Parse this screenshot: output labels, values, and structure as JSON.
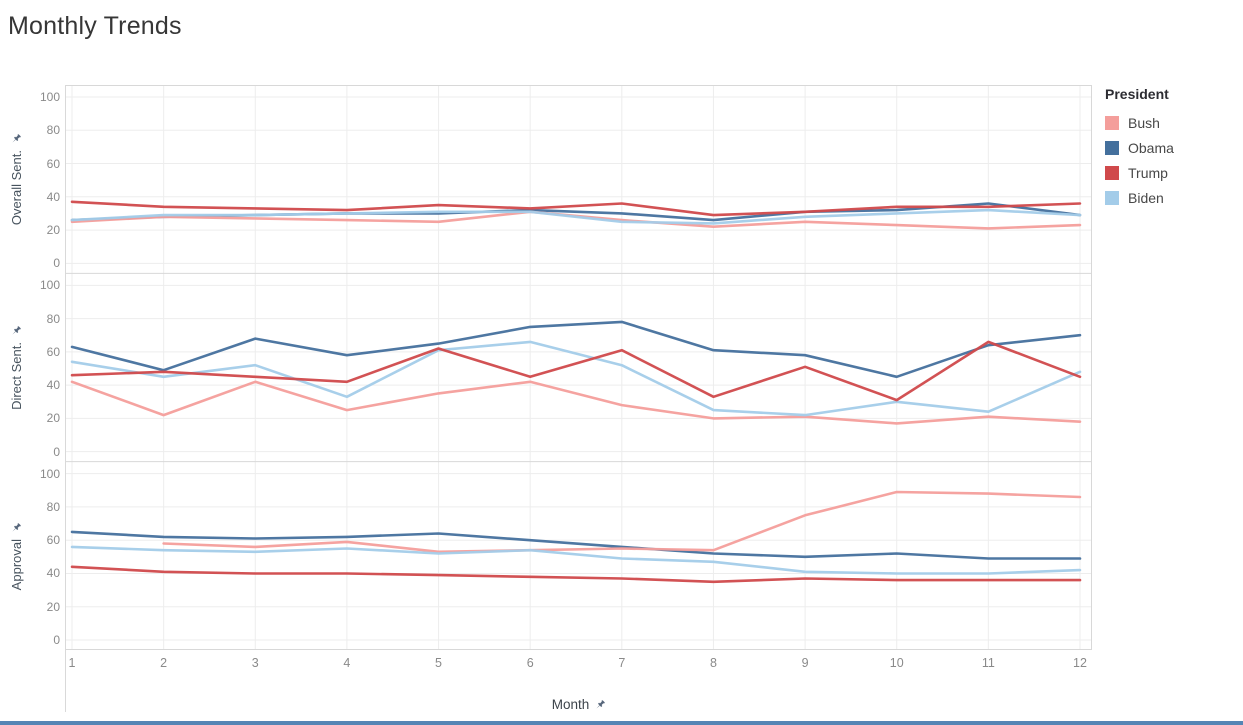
{
  "title": "Monthly Trends",
  "legend": {
    "title": "President",
    "items": [
      {
        "label": "Bush",
        "color": "#f49e9b"
      },
      {
        "label": "Obama",
        "color": "#44709d"
      },
      {
        "label": "Trump",
        "color": "#d0494b"
      },
      {
        "label": "Biden",
        "color": "#a3cce9"
      }
    ]
  },
  "axes": {
    "x_title": "Month",
    "x_ticks": [
      "1",
      "2",
      "3",
      "4",
      "5",
      "6",
      "7",
      "8",
      "9",
      "10",
      "11",
      "12"
    ],
    "y_ticks": [
      100,
      80,
      60,
      40,
      20,
      0
    ]
  },
  "style": {
    "grid_color": "#ededed",
    "border_color": "#d8d8d8",
    "pin_color": "#55657a"
  },
  "chart_data": [
    {
      "type": "line",
      "panel_label": "Overall Sent.",
      "x": [
        1,
        2,
        3,
        4,
        5,
        6,
        7,
        8,
        9,
        10,
        11,
        12
      ],
      "ylim": [
        0,
        100
      ],
      "grid": true,
      "legend_position": "right",
      "series": [
        {
          "name": "Bush",
          "color": "#f49e9b",
          "values": [
            25,
            28,
            27,
            26,
            25,
            31,
            26,
            22,
            25,
            23,
            21,
            23
          ]
        },
        {
          "name": "Obama",
          "color": "#44709d",
          "values": [
            26,
            28,
            29,
            30,
            30,
            32,
            30,
            26,
            31,
            32,
            36,
            29
          ]
        },
        {
          "name": "Trump",
          "color": "#d0494b",
          "values": [
            37,
            34,
            33,
            32,
            35,
            33,
            36,
            29,
            31,
            34,
            34,
            36
          ]
        },
        {
          "name": "Biden",
          "color": "#a3cce9",
          "values": [
            26,
            29,
            29,
            30,
            31,
            31,
            25,
            24,
            28,
            30,
            32,
            29
          ]
        }
      ]
    },
    {
      "type": "line",
      "panel_label": "Direct Sent.",
      "x": [
        1,
        2,
        3,
        4,
        5,
        6,
        7,
        8,
        9,
        10,
        11,
        12
      ],
      "ylim": [
        0,
        100
      ],
      "grid": true,
      "series": [
        {
          "name": "Bush",
          "color": "#f49e9b",
          "values": [
            42,
            22,
            42,
            25,
            35,
            42,
            28,
            20,
            21,
            17,
            21,
            18
          ]
        },
        {
          "name": "Obama",
          "color": "#44709d",
          "values": [
            63,
            49,
            68,
            58,
            65,
            75,
            78,
            61,
            58,
            45,
            64,
            70
          ]
        },
        {
          "name": "Trump",
          "color": "#d0494b",
          "values": [
            46,
            48,
            45,
            42,
            62,
            45,
            61,
            33,
            51,
            31,
            66,
            45
          ]
        },
        {
          "name": "Biden",
          "color": "#a3cce9",
          "values": [
            54,
            45,
            52,
            33,
            61,
            66,
            52,
            25,
            22,
            30,
            24,
            48
          ]
        }
      ]
    },
    {
      "type": "line",
      "panel_label": "Approval",
      "x": [
        1,
        2,
        3,
        4,
        5,
        6,
        7,
        8,
        9,
        10,
        11,
        12
      ],
      "ylim": [
        0,
        100
      ],
      "grid": true,
      "series": [
        {
          "name": "Bush",
          "color": "#f49e9b",
          "values": [
            null,
            58,
            56,
            59,
            53,
            54,
            55,
            54,
            75,
            89,
            88,
            86
          ]
        },
        {
          "name": "Obama",
          "color": "#44709d",
          "values": [
            65,
            62,
            61,
            62,
            64,
            60,
            56,
            52,
            50,
            52,
            49,
            49
          ]
        },
        {
          "name": "Trump",
          "color": "#d0494b",
          "values": [
            44,
            41,
            40,
            40,
            39,
            38,
            37,
            35,
            37,
            36,
            36,
            36
          ]
        },
        {
          "name": "Biden",
          "color": "#a3cce9",
          "values": [
            56,
            54,
            53,
            55,
            52,
            54,
            49,
            47,
            41,
            40,
            40,
            42
          ]
        }
      ]
    }
  ]
}
